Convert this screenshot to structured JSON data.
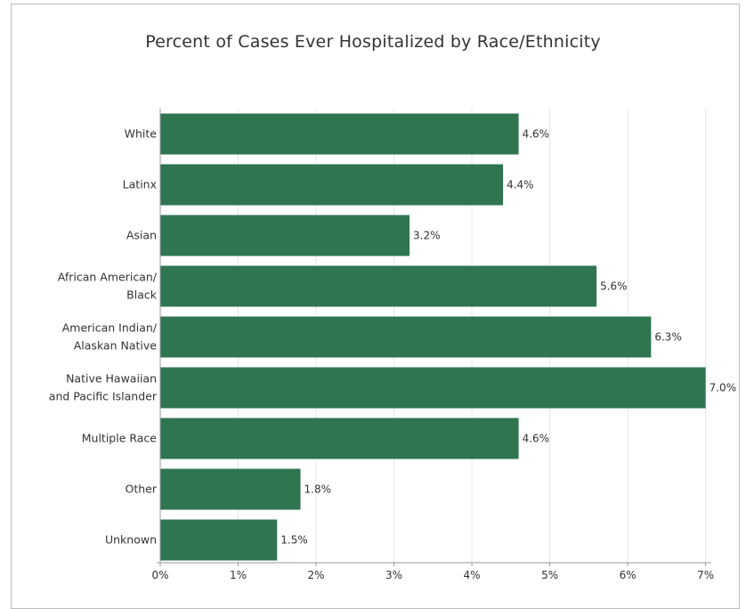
{
  "chart_data": {
    "type": "bar",
    "orientation": "horizontal",
    "title": "Percent of Cases Ever Hospitalized by Race/Ethnicity",
    "categories": [
      [
        "White"
      ],
      [
        "Latinx"
      ],
      [
        "Asian"
      ],
      [
        "African American/",
        "Black"
      ],
      [
        "American Indian/",
        "Alaskan Native"
      ],
      [
        "Native Hawaiian",
        "and Pacific Islander"
      ],
      [
        "Multiple Race"
      ],
      [
        "Other"
      ],
      [
        "Unknown"
      ]
    ],
    "values": [
      4.6,
      4.4,
      3.2,
      5.6,
      6.3,
      7.0,
      4.6,
      1.8,
      1.5
    ],
    "value_labels": [
      "4.6%",
      "4.4%",
      "3.2%",
      "5.6%",
      "6.3%",
      "7.0%",
      "4.6%",
      "1.8%",
      "1.5%"
    ],
    "x_ticks": [
      0,
      1,
      2,
      3,
      4,
      5,
      6,
      7
    ],
    "x_tick_labels": [
      "0%",
      "1%",
      "2%",
      "3%",
      "4%",
      "5%",
      "6%",
      "7%"
    ],
    "xlim": [
      0,
      7.05
    ],
    "grid": true,
    "bar_color": "#2e7550",
    "grid_color": "#e6e6e6",
    "axis_color": "#9a9a9a"
  }
}
